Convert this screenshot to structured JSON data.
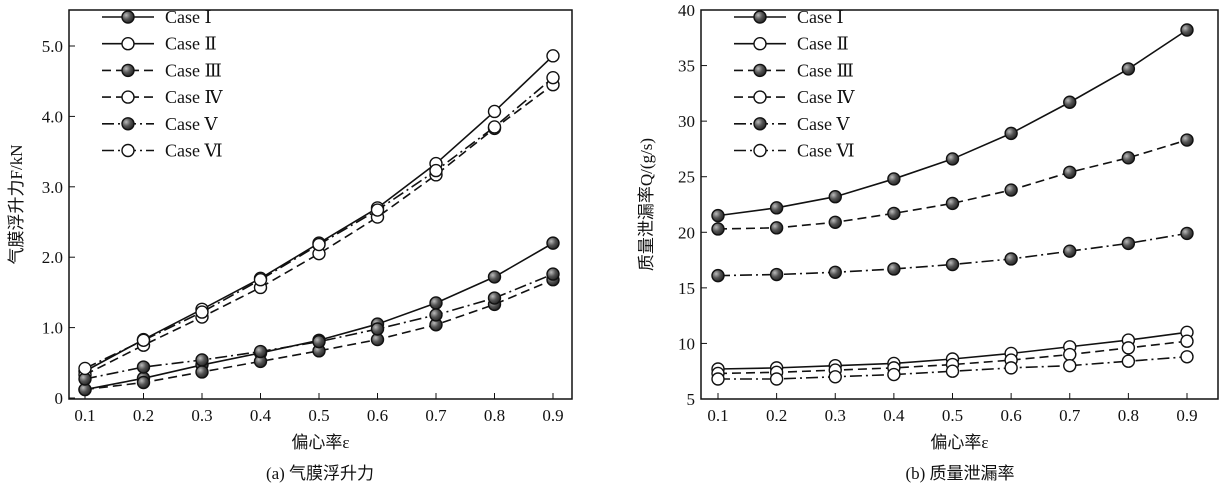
{
  "chart_data": [
    {
      "type": "line",
      "title": "(a) 气膜浮升力",
      "xlabel": "偏心率ε",
      "ylabel": "气膜浮升力F/kN",
      "x": [
        0.1,
        0.2,
        0.3,
        0.4,
        0.5,
        0.6,
        0.7,
        0.8,
        0.9
      ],
      "xticks": [
        "0.1",
        "0.2",
        "0.3",
        "0.4",
        "0.5",
        "0.6",
        "0.7",
        "0.8",
        "0.9"
      ],
      "ylim": [
        0,
        5.4
      ],
      "yticks": [
        "0",
        "1.0",
        "2.0",
        "3.0",
        "4.0",
        "5.0"
      ],
      "ytick_values": [
        0,
        1,
        2,
        3,
        4,
        5
      ],
      "legend_position": "top-left",
      "series": [
        {
          "name": "Case Ⅰ",
          "line": "solid",
          "marker": "filled",
          "values": [
            0.12,
            0.28,
            0.47,
            0.64,
            0.82,
            1.05,
            1.35,
            1.72,
            2.2
          ]
        },
        {
          "name": "Case Ⅱ",
          "line": "solid",
          "marker": "open",
          "values": [
            0.38,
            0.83,
            1.26,
            1.7,
            2.2,
            2.7,
            3.33,
            4.07,
            4.86
          ]
        },
        {
          "name": "Case Ⅲ",
          "line": "dashed",
          "marker": "filled",
          "values": [
            0.12,
            0.22,
            0.37,
            0.52,
            0.67,
            0.83,
            1.04,
            1.33,
            1.68
          ]
        },
        {
          "name": "Case Ⅳ",
          "line": "dashed",
          "marker": "open",
          "values": [
            0.33,
            0.75,
            1.15,
            1.57,
            2.05,
            2.57,
            3.17,
            3.83,
            4.45
          ]
        },
        {
          "name": "Case Ⅴ",
          "line": "dashdot",
          "marker": "filled",
          "values": [
            0.27,
            0.44,
            0.54,
            0.66,
            0.8,
            0.98,
            1.18,
            1.42,
            1.76
          ]
        },
        {
          "name": "Case Ⅵ",
          "line": "dashdot",
          "marker": "open",
          "values": [
            0.42,
            0.82,
            1.22,
            1.68,
            2.18,
            2.67,
            3.23,
            3.85,
            4.55
          ]
        }
      ]
    },
    {
      "type": "line",
      "title": "(b) 质量泄漏率",
      "xlabel": "偏心率ε",
      "ylabel": "质量泄漏率Q/(g/s)",
      "x": [
        0.1,
        0.2,
        0.3,
        0.4,
        0.5,
        0.6,
        0.7,
        0.8,
        0.9
      ],
      "xticks": [
        "0.1",
        "0.2",
        "0.3",
        "0.4",
        "0.5",
        "0.6",
        "0.7",
        "0.8",
        "0.9"
      ],
      "ylim": [
        5,
        40
      ],
      "yticks": [
        "5",
        "10",
        "15",
        "20",
        "25",
        "30",
        "35",
        "40"
      ],
      "ytick_values": [
        5,
        10,
        15,
        20,
        25,
        30,
        35,
        40
      ],
      "legend_position": "top-left",
      "series": [
        {
          "name": "Case Ⅰ",
          "line": "solid",
          "marker": "filled",
          "values": [
            21.5,
            22.2,
            23.2,
            24.8,
            26.6,
            28.9,
            31.7,
            34.7,
            38.2
          ]
        },
        {
          "name": "Case Ⅱ",
          "line": "solid",
          "marker": "open",
          "values": [
            7.7,
            7.8,
            8.0,
            8.2,
            8.6,
            9.1,
            9.7,
            10.3,
            11.0
          ]
        },
        {
          "name": "Case Ⅲ",
          "line": "dashed",
          "marker": "filled",
          "values": [
            20.3,
            20.4,
            20.9,
            21.7,
            22.6,
            23.8,
            25.4,
            26.7,
            28.3
          ]
        },
        {
          "name": "Case Ⅳ",
          "line": "dashed",
          "marker": "open",
          "values": [
            7.3,
            7.4,
            7.6,
            7.8,
            8.1,
            8.5,
            9.0,
            9.6,
            10.2
          ]
        },
        {
          "name": "Case Ⅴ",
          "line": "dashdot",
          "marker": "filled",
          "values": [
            16.1,
            16.2,
            16.4,
            16.7,
            17.1,
            17.6,
            18.3,
            19.0,
            19.9
          ]
        },
        {
          "name": "Case Ⅵ",
          "line": "dashdot",
          "marker": "open",
          "values": [
            6.8,
            6.8,
            7.0,
            7.2,
            7.5,
            7.8,
            8.0,
            8.4,
            8.8
          ]
        }
      ]
    }
  ]
}
